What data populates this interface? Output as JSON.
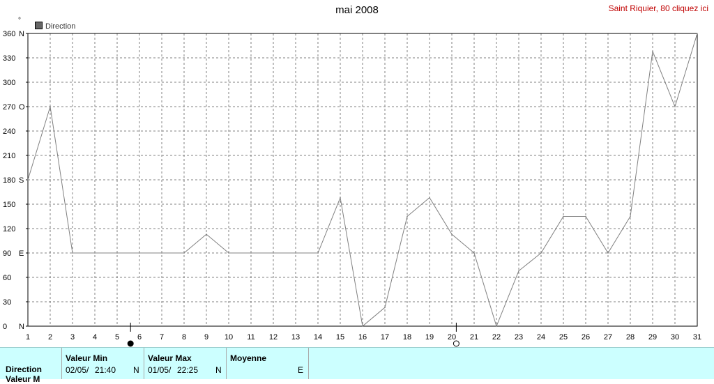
{
  "page": {
    "title": "mai 2008",
    "site_link": "Saint Riquier, 80 cliquez ici",
    "degree_mark": "°"
  },
  "chart_data": {
    "type": "line",
    "title": "mai 2008",
    "legend": [
      "Direction"
    ],
    "legend_placement": "top-left",
    "grid": true,
    "x": [
      1,
      2,
      3,
      4,
      5,
      6,
      7,
      8,
      9,
      10,
      11,
      12,
      13,
      14,
      15,
      16,
      17,
      18,
      19,
      20,
      21,
      22,
      23,
      24,
      25,
      26,
      27,
      28,
      29,
      30,
      31
    ],
    "ylim": [
      0,
      360
    ],
    "yticks": [
      {
        "value": 0,
        "label": "0",
        "cardinal": "N"
      },
      {
        "value": 30,
        "label": "30",
        "cardinal": ""
      },
      {
        "value": 60,
        "label": "60",
        "cardinal": ""
      },
      {
        "value": 90,
        "label": "90",
        "cardinal": "E"
      },
      {
        "value": 120,
        "label": "120",
        "cardinal": ""
      },
      {
        "value": 150,
        "label": "150",
        "cardinal": ""
      },
      {
        "value": 180,
        "label": "180",
        "cardinal": "S"
      },
      {
        "value": 210,
        "label": "210",
        "cardinal": ""
      },
      {
        "value": 240,
        "label": "240",
        "cardinal": ""
      },
      {
        "value": 270,
        "label": "270",
        "cardinal": "O"
      },
      {
        "value": 300,
        "label": "300",
        "cardinal": ""
      },
      {
        "value": 330,
        "label": "330",
        "cardinal": ""
      },
      {
        "value": 360,
        "label": "360",
        "cardinal": "N"
      }
    ],
    "series": [
      {
        "name": "Direction",
        "values": [
          180,
          270,
          90,
          90,
          90,
          90,
          90,
          90,
          113,
          90,
          90,
          90,
          90,
          90,
          158,
          0,
          23,
          135,
          158,
          113,
          90,
          0,
          68,
          90,
          135,
          135,
          90,
          135,
          338,
          270,
          360
        ]
      }
    ],
    "moon_phases": [
      {
        "x": 5.6,
        "phase": "new"
      },
      {
        "x": 20.2,
        "phase": "full"
      }
    ],
    "colors": {
      "line": "#808080",
      "grid": "#808080",
      "axis": "#000000"
    }
  },
  "footer": {
    "row_label": "Direction",
    "row_label2": "Valeur M",
    "min": {
      "header": "Valeur Min",
      "date": "02/05/",
      "time": "21:40",
      "dir": "N"
    },
    "max": {
      "header": "Valeur Max",
      "date": "01/05/",
      "time": "22:25",
      "dir": "N"
    },
    "avg": {
      "header": "Moyenne",
      "dir": "E"
    }
  }
}
